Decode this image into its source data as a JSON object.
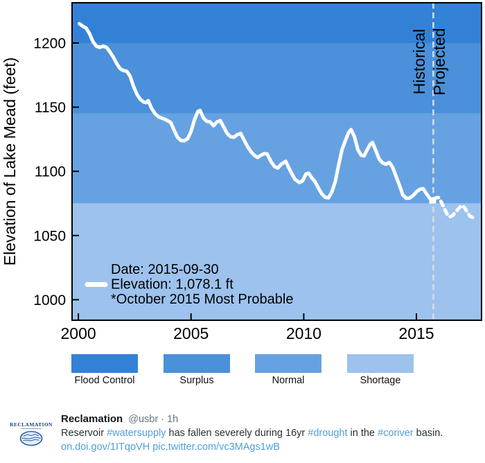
{
  "chart_data": {
    "type": "line",
    "title": "",
    "xlabel": "",
    "ylabel": "Elevation of Lake Mead (feet)",
    "xlim": [
      1999.72,
      2017.89
    ],
    "ylim": [
      984,
      1231.3
    ],
    "xticks": [
      2000,
      2005,
      2010,
      2015
    ],
    "yticks": [
      1000,
      1050,
      1100,
      1150,
      1200
    ],
    "grid": false,
    "line_color": "#ffffff",
    "bands": [
      {
        "name": "Flood Control",
        "from": 1200,
        "to": 1231.3,
        "color": "#3381d6"
      },
      {
        "name": "Surplus",
        "from": 1145,
        "to": 1200,
        "color": "#4a90da"
      },
      {
        "name": "Normal",
        "from": 1075,
        "to": 1145,
        "color": "#66a2e2"
      },
      {
        "name": "Shortage",
        "from": 984,
        "to": 1075,
        "color": "#9cc2ed"
      }
    ],
    "divider": {
      "x": 2015.75,
      "left_label": "Historical",
      "right_label": "Projected",
      "color": "#d5dbe1"
    },
    "series": [
      {
        "name": "Historical elevation",
        "style": "solid",
        "color": "#ffffff",
        "points": [
          [
            2000.05,
            1215
          ],
          [
            2000.2,
            1213
          ],
          [
            2000.35,
            1211.5
          ],
          [
            2000.5,
            1207
          ],
          [
            2000.65,
            1201
          ],
          [
            2000.8,
            1197.5
          ],
          [
            2000.95,
            1196.5
          ],
          [
            2001.1,
            1197.5
          ],
          [
            2001.25,
            1196.5
          ],
          [
            2001.4,
            1193
          ],
          [
            2001.55,
            1189
          ],
          [
            2001.7,
            1184
          ],
          [
            2001.85,
            1180
          ],
          [
            2002.0,
            1178.5
          ],
          [
            2002.15,
            1178
          ],
          [
            2002.3,
            1174
          ],
          [
            2002.45,
            1166
          ],
          [
            2002.6,
            1160
          ],
          [
            2002.75,
            1156
          ],
          [
            2002.9,
            1154
          ],
          [
            2003.0,
            1153.5
          ],
          [
            2003.1,
            1155
          ],
          [
            2003.25,
            1149
          ],
          [
            2003.4,
            1145
          ],
          [
            2003.55,
            1142.5
          ],
          [
            2003.7,
            1141.5
          ],
          [
            2003.85,
            1140.5
          ],
          [
            2004.0,
            1139
          ],
          [
            2004.1,
            1138
          ],
          [
            2004.25,
            1132
          ],
          [
            2004.4,
            1126.5
          ],
          [
            2004.55,
            1124
          ],
          [
            2004.7,
            1123.8
          ],
          [
            2004.85,
            1125.5
          ],
          [
            2005.0,
            1131
          ],
          [
            2005.15,
            1140
          ],
          [
            2005.3,
            1146.5
          ],
          [
            2005.4,
            1147.5
          ],
          [
            2005.55,
            1141.5
          ],
          [
            2005.7,
            1139
          ],
          [
            2005.85,
            1138.5
          ],
          [
            2006.0,
            1135.5
          ],
          [
            2006.15,
            1138.5
          ],
          [
            2006.3,
            1139.5
          ],
          [
            2006.45,
            1134.5
          ],
          [
            2006.6,
            1129.5
          ],
          [
            2006.75,
            1127
          ],
          [
            2006.9,
            1126.5
          ],
          [
            2007.05,
            1128.5
          ],
          [
            2007.2,
            1129.5
          ],
          [
            2007.35,
            1124.5
          ],
          [
            2007.5,
            1119.5
          ],
          [
            2007.65,
            1115.5
          ],
          [
            2007.8,
            1112.5
          ],
          [
            2007.95,
            1110.8
          ],
          [
            2008.1,
            1112.5
          ],
          [
            2008.25,
            1113.8
          ],
          [
            2008.38,
            1113.5
          ],
          [
            2008.55,
            1107.5
          ],
          [
            2008.7,
            1103.8
          ],
          [
            2008.85,
            1102.5
          ],
          [
            2009.0,
            1105.5
          ],
          [
            2009.2,
            1107.8
          ],
          [
            2009.4,
            1100.5
          ],
          [
            2009.6,
            1094
          ],
          [
            2009.8,
            1091.3
          ],
          [
            2009.95,
            1092.5
          ],
          [
            2010.1,
            1098
          ],
          [
            2010.22,
            1098.5
          ],
          [
            2010.35,
            1095
          ],
          [
            2010.5,
            1092
          ],
          [
            2010.65,
            1087
          ],
          [
            2010.8,
            1082.5
          ],
          [
            2010.95,
            1079.8
          ],
          [
            2011.1,
            1079.3
          ],
          [
            2011.25,
            1084
          ],
          [
            2011.4,
            1092
          ],
          [
            2011.55,
            1105
          ],
          [
            2011.7,
            1117
          ],
          [
            2011.85,
            1124
          ],
          [
            2012.0,
            1130.5
          ],
          [
            2012.1,
            1132.5
          ],
          [
            2012.25,
            1127
          ],
          [
            2012.4,
            1117
          ],
          [
            2012.55,
            1112.5
          ],
          [
            2012.68,
            1112
          ],
          [
            2012.82,
            1117
          ],
          [
            2012.95,
            1121
          ],
          [
            2013.05,
            1122.5
          ],
          [
            2013.2,
            1116
          ],
          [
            2013.35,
            1109.5
          ],
          [
            2013.5,
            1106.5
          ],
          [
            2013.65,
            1105.5
          ],
          [
            2013.8,
            1107
          ],
          [
            2013.95,
            1103
          ],
          [
            2014.1,
            1096
          ],
          [
            2014.25,
            1089
          ],
          [
            2014.4,
            1081.5
          ],
          [
            2014.55,
            1079
          ],
          [
            2014.7,
            1079.2
          ],
          [
            2014.85,
            1081
          ],
          [
            2015.0,
            1084
          ],
          [
            2015.15,
            1086
          ],
          [
            2015.3,
            1086.5
          ],
          [
            2015.45,
            1082.5
          ],
          [
            2015.6,
            1078.8
          ],
          [
            2015.72,
            1078.1
          ]
        ]
      },
      {
        "name": "Projected elevation",
        "style": "dashed",
        "color": "#ffffff",
        "points": [
          [
            2015.78,
            1078.5
          ],
          [
            2015.9,
            1079.5
          ],
          [
            2016.0,
            1079.5
          ],
          [
            2016.12,
            1075.5
          ],
          [
            2016.25,
            1070.5
          ],
          [
            2016.38,
            1066
          ],
          [
            2016.48,
            1064.5
          ],
          [
            2016.6,
            1065.5
          ],
          [
            2016.75,
            1068.5
          ],
          [
            2016.9,
            1071.5
          ],
          [
            2017.02,
            1073.5
          ],
          [
            2017.12,
            1072
          ],
          [
            2017.25,
            1068.5
          ],
          [
            2017.38,
            1065
          ],
          [
            2017.5,
            1064
          ],
          [
            2017.6,
            1066
          ]
        ]
      }
    ],
    "marker": {
      "x": 2015.72,
      "y": 1078.1,
      "color": "#ffffff"
    },
    "annotations": [
      "Date: 2015-09-30",
      "Elevation: 1,078.1 ft",
      "*October 2015 Most Probable"
    ]
  },
  "tweet": {
    "name": "Reclamation",
    "handle": "@usbr",
    "separator": "·",
    "time": "1h",
    "avatar_text": "RECLAMATION",
    "body_parts": [
      {
        "text": "Reservoir ",
        "link": false
      },
      {
        "text": "#watersupply",
        "link": true
      },
      {
        "text": " has fallen severely during 16yr ",
        "link": false
      },
      {
        "text": "#drought",
        "link": true
      },
      {
        "text": " in the ",
        "link": false
      },
      {
        "text": "#coriver",
        "link": true
      },
      {
        "text": " basin.",
        "link": false
      }
    ],
    "links": [
      {
        "text": "on.doi.gov/1ITqoVH"
      },
      {
        "text": "pic.twitter.com/vc3MAgs1wB"
      }
    ],
    "colors": {
      "link": "#4f9fdb",
      "text": "#292f33",
      "muted": "#66757f"
    }
  }
}
